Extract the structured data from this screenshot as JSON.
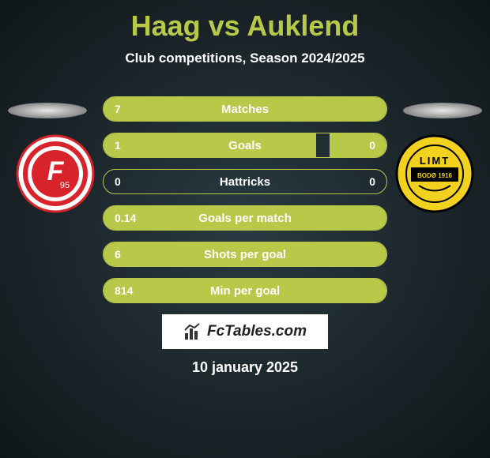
{
  "title": "Haag vs Auklend",
  "subtitle": "Club competitions, Season 2024/2025",
  "date": "10 january 2025",
  "fctables_label": "FcTables.com",
  "colors": {
    "accent": "#b8c94a",
    "text": "#ffffff",
    "bg_center": "#2a3a42",
    "bg_outer": "#0f1618"
  },
  "rows": [
    {
      "label": "Matches",
      "left_val": "7",
      "right_val": "",
      "left_pct": 100,
      "right_pct": 0
    },
    {
      "label": "Goals",
      "left_val": "1",
      "right_val": "0",
      "left_pct": 75,
      "right_pct": 20
    },
    {
      "label": "Hattricks",
      "left_val": "0",
      "right_val": "0",
      "left_pct": 0,
      "right_pct": 0
    },
    {
      "label": "Goals per match",
      "left_val": "0.14",
      "right_val": "",
      "left_pct": 100,
      "right_pct": 0
    },
    {
      "label": "Shots per goal",
      "left_val": "6",
      "right_val": "",
      "left_pct": 100,
      "right_pct": 0
    },
    {
      "label": "Min per goal",
      "left_val": "814",
      "right_val": "",
      "left_pct": 100,
      "right_pct": 0
    }
  ],
  "team_left": {
    "name": "Fortuna Düsseldorf",
    "badge": {
      "bg": "#ffffff",
      "ring": "#d8232a",
      "letter": "F",
      "letter_color": "#d8232a",
      "sub": "95"
    }
  },
  "team_right": {
    "name": "Bodø/Glimt",
    "badge": {
      "bg": "#f2d21f",
      "ring": "#000000",
      "text_top": "LIMT",
      "text_bot": "BODØ 1916",
      "text_color": "#000000"
    }
  }
}
